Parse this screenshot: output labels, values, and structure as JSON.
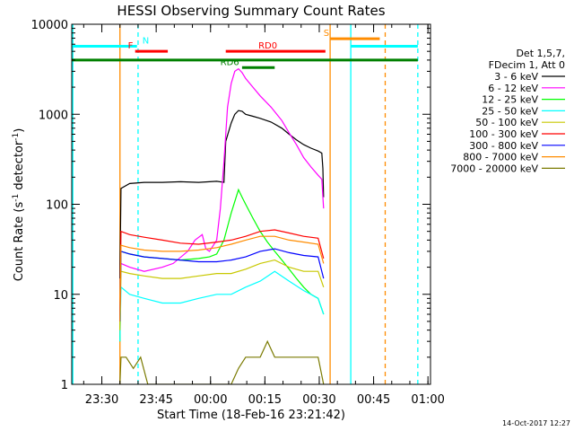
{
  "chart_data": {
    "type": "line",
    "title": "HESSI Observing Summary Count Rates",
    "xlabel": "Start Time (18-Feb-16 23:21:42)",
    "ylabel_main": "Count Rate (s",
    "ylabel_sup1": "-1",
    "ylabel_mid": " detector",
    "ylabel_sup2": "-1",
    "ylabel_end": ")",
    "y_scale": "log",
    "ylim": [
      1,
      10000
    ],
    "xlim_minutes": [
      0,
      99
    ],
    "x_ticks": [
      {
        "label": "23:30",
        "t": 8.3
      },
      {
        "label": "23:45",
        "t": 23.3
      },
      {
        "label": "00:00",
        "t": 38.3
      },
      {
        "label": "00:15",
        "t": 53.3
      },
      {
        "label": "00:30",
        "t": 68.3
      },
      {
        "label": "00:45",
        "t": 83.3
      },
      {
        "label": "01:00",
        "t": 98.3
      }
    ],
    "y_ticks": [
      {
        "label": "1",
        "v": 1
      },
      {
        "label": "10",
        "v": 10
      },
      {
        "label": "100",
        "v": 100
      },
      {
        "label": "1000",
        "v": 1000
      },
      {
        "label": "10000",
        "v": 10000
      }
    ],
    "legend_header": [
      "Det 1,5,7,",
      "FDecim 1, Att 0"
    ],
    "legend_placement": "right",
    "series": [
      {
        "name": "3 - 6 keV",
        "color": "#000000",
        "t": [
          13.3,
          13.6,
          16,
          20,
          25,
          30,
          35,
          40,
          42,
          42.5,
          44,
          45,
          46,
          47,
          48,
          50,
          52,
          55,
          58,
          60,
          62,
          64,
          66,
          68,
          69,
          69.3,
          69.5
        ],
        "values": [
          15,
          150,
          170,
          175,
          175,
          178,
          175,
          180,
          175,
          500,
          800,
          1000,
          1100,
          1080,
          1000,
          950,
          900,
          820,
          700,
          600,
          520,
          460,
          420,
          390,
          370,
          250,
          120
        ]
      },
      {
        "name": "6 - 12 keV",
        "color": "#ff00ff",
        "t": [
          13.3,
          13.6,
          16,
          20,
          25,
          28,
          32,
          34,
          36,
          37,
          38,
          40,
          41,
          42,
          43,
          44,
          45,
          46,
          47,
          48,
          50,
          52,
          55,
          58,
          60,
          62,
          64,
          66,
          68,
          69,
          69.5
        ],
        "values": [
          5,
          22,
          20,
          18,
          20,
          22,
          30,
          40,
          46,
          32,
          30,
          40,
          90,
          300,
          1200,
          2200,
          3000,
          3200,
          2900,
          2500,
          2000,
          1600,
          1200,
          850,
          620,
          460,
          330,
          260,
          210,
          190,
          90
        ]
      },
      {
        "name": "12 - 25 keV",
        "color": "#00ff00",
        "t": [
          13.3,
          13.6,
          16,
          20,
          25,
          30,
          35,
          38,
          40,
          42,
          44,
          46,
          47,
          48,
          50,
          52,
          54,
          56,
          58,
          60,
          62,
          64,
          66,
          68,
          69.5
        ],
        "values": [
          3,
          30,
          28,
          26,
          25,
          24,
          25,
          26,
          28,
          40,
          80,
          145,
          120,
          100,
          70,
          50,
          38,
          30,
          24,
          19,
          15,
          12,
          10,
          9,
          6
        ]
      },
      {
        "name": "25 - 50 keV",
        "color": "#00ffff",
        "t": [
          13.3,
          13.6,
          16,
          20,
          25,
          30,
          35,
          40,
          44,
          48,
          52,
          56,
          60,
          64,
          66,
          68,
          69.5
        ],
        "values": [
          3,
          12,
          10,
          9,
          8,
          8,
          9,
          10,
          10,
          12,
          14,
          18,
          14,
          11,
          10,
          9,
          6
        ]
      },
      {
        "name": "50 - 100 keV",
        "color": "#c8c800",
        "t": [
          13.3,
          13.6,
          16,
          20,
          25,
          30,
          35,
          40,
          44,
          48,
          52,
          56,
          60,
          64,
          68,
          69.5
        ],
        "values": [
          4,
          18,
          17,
          16,
          15,
          15,
          16,
          17,
          17,
          19,
          22,
          24,
          20,
          18,
          18,
          12
        ]
      },
      {
        "name": "100 - 300 keV",
        "color": "#ff0000",
        "t": [
          13.3,
          13.6,
          16,
          20,
          25,
          30,
          35,
          40,
          44,
          48,
          52,
          56,
          60,
          64,
          68,
          69.5
        ],
        "values": [
          5,
          50,
          46,
          43,
          40,
          37,
          36,
          38,
          40,
          44,
          50,
          52,
          48,
          44,
          42,
          25
        ]
      },
      {
        "name": "300 - 800 keV",
        "color": "#0000ff",
        "t": [
          13.3,
          13.6,
          16,
          20,
          25,
          30,
          35,
          40,
          44,
          48,
          52,
          56,
          60,
          64,
          68,
          69.5
        ],
        "values": [
          5,
          30,
          28,
          26,
          25,
          24,
          23,
          23,
          24,
          26,
          30,
          32,
          29,
          27,
          26,
          15
        ]
      },
      {
        "name": "800 - 7000 keV",
        "color": "#ff8c00",
        "t": [
          13.3,
          13.6,
          16,
          20,
          25,
          30,
          35,
          40,
          44,
          48,
          52,
          56,
          60,
          64,
          68,
          69.5
        ],
        "values": [
          5,
          35,
          33,
          31,
          30,
          30,
          31,
          33,
          36,
          40,
          44,
          44,
          40,
          38,
          36,
          22
        ]
      },
      {
        "name": "7000 - 20000 keV",
        "color": "#7a7a00",
        "t": [
          13.3,
          13.6,
          15,
          17,
          19,
          21,
          44,
          46,
          48,
          50,
          52,
          54,
          56,
          58,
          60,
          62,
          64,
          66,
          68,
          69.5
        ],
        "values": [
          1,
          2,
          2,
          1.5,
          2,
          1,
          1,
          1.5,
          2,
          2,
          2,
          3,
          2,
          2,
          2,
          2,
          2,
          2,
          2,
          1
        ]
      }
    ],
    "vertical_lines": [
      {
        "t": 0.3,
        "color": "#00ffff",
        "style": "solid"
      },
      {
        "t": 13.3,
        "color": "#ff8c00",
        "style": "solid"
      },
      {
        "t": 18.3,
        "color": "#00ffff",
        "style": "dashed"
      },
      {
        "t": 71.3,
        "color": "#ff8c00",
        "style": "solid"
      },
      {
        "t": 77.0,
        "color": "#00ffff",
        "style": "solid"
      },
      {
        "t": 86.5,
        "color": "#ff8c00",
        "style": "dashed"
      },
      {
        "t": 95.5,
        "color": "#00ffff",
        "style": "dashed"
      }
    ],
    "flag_bars": [
      {
        "label": "N",
        "color": "#00ffff",
        "v": 5700,
        "segments": [
          [
            0,
            18
          ],
          [
            77,
            95.5
          ]
        ],
        "label_at": 19.5
      },
      {
        "label": "F",
        "color": "#ff0000",
        "v": 5000,
        "segments": [
          [
            17.5,
            26.5
          ]
        ],
        "label_at": 15.5
      },
      {
        "label": "RD0",
        "color": "#ff0000",
        "v": 5000,
        "segments": [
          [
            42.5,
            70
          ]
        ],
        "label_at": 51.5
      },
      {
        "label": "S",
        "color": "#ff8c00",
        "v": 6900,
        "segments": [
          [
            71.3,
            85
          ]
        ],
        "label_at": 69.5
      },
      {
        "label": "",
        "color": "#008000",
        "v": 4000,
        "segments": [
          [
            0,
            95.5
          ]
        ],
        "label_at": 0
      },
      {
        "label": "RD6",
        "color": "#008000",
        "v": 3300,
        "segments": [
          [
            47,
            56
          ]
        ],
        "label_at": 41
      }
    ]
  },
  "footer_date": "14-Oct-2017 12:27"
}
